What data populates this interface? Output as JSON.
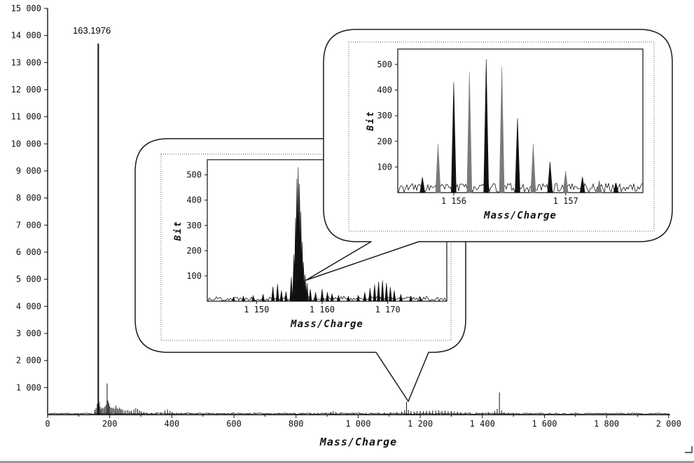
{
  "figure": {
    "background": "#ffffff",
    "trace_color": "#111111",
    "gray_peak_color": "#7a7a7a"
  },
  "chart_data": [
    {
      "id": "main-spectrum",
      "type": "line",
      "title": "",
      "xlabel": "Mass/Charge",
      "ylabel": "",
      "xlim": [
        0,
        2005
      ],
      "ylim": [
        0,
        15000
      ],
      "grid": false,
      "legend": "none",
      "xmajor": 200,
      "xminor": 100,
      "xticks": [
        {
          "v": 0,
          "label": "0"
        },
        {
          "v": 200,
          "label": "200"
        },
        {
          "v": 400,
          "label": "400"
        },
        {
          "v": 600,
          "label": "600"
        },
        {
          "v": 800,
          "label": "800"
        },
        {
          "v": 1000,
          "label": "1 000"
        },
        {
          "v": 1200,
          "label": "1 200"
        },
        {
          "v": 1400,
          "label": "1 400"
        },
        {
          "v": 1600,
          "label": "1 600"
        },
        {
          "v": 1800,
          "label": "1 800"
        },
        {
          "v": 2000,
          "label": "2 000"
        }
      ],
      "yticks": [
        {
          "v": 1000,
          "label": "1 000"
        },
        {
          "v": 2000,
          "label": "2 000"
        },
        {
          "v": 3000,
          "label": "3 000"
        },
        {
          "v": 4000,
          "label": "4 000"
        },
        {
          "v": 5000,
          "label": "5 000"
        },
        {
          "v": 6000,
          "label": "6 000"
        },
        {
          "v": 7000,
          "label": "7 000"
        },
        {
          "v": 8000,
          "label": "8 000"
        },
        {
          "v": 9000,
          "label": "9 000"
        },
        {
          "v": 10000,
          "label": "10 000"
        },
        {
          "v": 11000,
          "label": "11 000"
        },
        {
          "v": 12000,
          "label": "12 000"
        },
        {
          "v": 13000,
          "label": "13 000"
        },
        {
          "v": 14000,
          "label": "14 000"
        },
        {
          "v": 15000,
          "label": "15 000"
        }
      ],
      "annotation": {
        "text": "163.1976",
        "mz": 163.1976,
        "intensity": 13700
      },
      "noise": 50,
      "seed": 11,
      "peaks": [
        [
          152,
          180
        ],
        [
          156,
          240
        ],
        [
          160,
          400
        ],
        [
          163.2,
          13700
        ],
        [
          166,
          460
        ],
        [
          169,
          300
        ],
        [
          172,
          210
        ],
        [
          176,
          260
        ],
        [
          180,
          230
        ],
        [
          184,
          290
        ],
        [
          188,
          360
        ],
        [
          191.5,
          1150
        ],
        [
          194,
          520
        ],
        [
          197,
          430
        ],
        [
          200,
          310
        ],
        [
          204,
          260
        ],
        [
          208,
          230
        ],
        [
          212,
          260
        ],
        [
          216,
          210
        ],
        [
          220,
          330
        ],
        [
          224,
          240
        ],
        [
          228,
          210
        ],
        [
          232,
          260
        ],
        [
          236,
          190
        ],
        [
          240,
          200
        ],
        [
          246,
          160
        ],
        [
          252,
          150
        ],
        [
          258,
          170
        ],
        [
          264,
          140
        ],
        [
          270,
          150
        ],
        [
          278,
          190
        ],
        [
          284,
          240
        ],
        [
          290,
          210
        ],
        [
          296,
          150
        ],
        [
          302,
          120
        ],
        [
          310,
          95
        ],
        [
          320,
          75
        ],
        [
          335,
          65
        ],
        [
          350,
          85
        ],
        [
          365,
          95
        ],
        [
          378,
          155
        ],
        [
          386,
          195
        ],
        [
          394,
          135
        ],
        [
          402,
          95
        ],
        [
          415,
          75
        ],
        [
          430,
          65
        ],
        [
          445,
          70
        ],
        [
          460,
          60
        ],
        [
          480,
          55
        ],
        [
          500,
          50
        ],
        [
          520,
          55
        ],
        [
          545,
          50
        ],
        [
          570,
          55
        ],
        [
          595,
          50
        ],
        [
          620,
          55
        ],
        [
          645,
          50
        ],
        [
          670,
          55
        ],
        [
          695,
          60
        ],
        [
          720,
          55
        ],
        [
          745,
          62
        ],
        [
          770,
          58
        ],
        [
          795,
          62
        ],
        [
          820,
          58
        ],
        [
          845,
          62
        ],
        [
          870,
          68
        ],
        [
          895,
          72
        ],
        [
          912,
          105
        ],
        [
          920,
          135
        ],
        [
          928,
          95
        ],
        [
          945,
          75
        ],
        [
          965,
          65
        ],
        [
          985,
          68
        ],
        [
          1005,
          62
        ],
        [
          1025,
          68
        ],
        [
          1045,
          64
        ],
        [
          1065,
          72
        ],
        [
          1085,
          78
        ],
        [
          1105,
          88
        ],
        [
          1125,
          98
        ],
        [
          1140,
          115
        ],
        [
          1150,
          170
        ],
        [
          1156,
          480
        ],
        [
          1162,
          175
        ],
        [
          1170,
          125
        ],
        [
          1180,
          115
        ],
        [
          1190,
          125
        ],
        [
          1200,
          135
        ],
        [
          1210,
          125
        ],
        [
          1220,
          145
        ],
        [
          1230,
          135
        ],
        [
          1240,
          155
        ],
        [
          1250,
          145
        ],
        [
          1260,
          155
        ],
        [
          1270,
          135
        ],
        [
          1280,
          145
        ],
        [
          1290,
          125
        ],
        [
          1300,
          135
        ],
        [
          1310,
          115
        ],
        [
          1320,
          105
        ],
        [
          1330,
          95
        ],
        [
          1345,
          85
        ],
        [
          1360,
          75
        ],
        [
          1380,
          78
        ],
        [
          1400,
          82
        ],
        [
          1420,
          88
        ],
        [
          1440,
          125
        ],
        [
          1448,
          210
        ],
        [
          1455,
          820
        ],
        [
          1462,
          155
        ],
        [
          1470,
          95
        ],
        [
          1485,
          75
        ],
        [
          1500,
          65
        ],
        [
          1520,
          55
        ],
        [
          1540,
          48
        ],
        [
          1560,
          42
        ],
        [
          1585,
          42
        ],
        [
          1610,
          36
        ],
        [
          1640,
          32
        ],
        [
          1670,
          30
        ],
        [
          1700,
          28
        ],
        [
          1730,
          27
        ],
        [
          1760,
          26
        ],
        [
          1790,
          25
        ],
        [
          1820,
          23
        ],
        [
          1850,
          21
        ],
        [
          1880,
          20
        ],
        [
          1910,
          19
        ],
        [
          1940,
          18
        ],
        [
          1970,
          17
        ]
      ]
    },
    {
      "id": "inset-zoom-1150-1178",
      "type": "line",
      "title": "",
      "xlabel": "Mass/Charge",
      "ylabel": "Bit",
      "xlim": [
        1142.5,
        1179
      ],
      "ylim": [
        0,
        560
      ],
      "grid": false,
      "legend": "none",
      "xticks": [
        {
          "v": 1150,
          "label": "1 150"
        },
        {
          "v": 1160,
          "label": "1 160"
        },
        {
          "v": 1170,
          "label": "1 170"
        }
      ],
      "yticks": [
        {
          "v": 100,
          "label": "100"
        },
        {
          "v": 200,
          "label": "200"
        },
        {
          "v": 300,
          "label": "300"
        },
        {
          "v": 400,
          "label": "400"
        },
        {
          "v": 500,
          "label": "500"
        }
      ],
      "noise": 18,
      "seed": 22,
      "peak_halfwidth": 0.22,
      "peaks": [
        [
          1146.5,
          16
        ],
        [
          1148,
          20
        ],
        [
          1149.5,
          22
        ],
        [
          1151,
          28
        ],
        [
          1152.5,
          58
        ],
        [
          1153.2,
          68
        ],
        [
          1153.8,
          42
        ],
        [
          1154.5,
          38
        ],
        [
          1155.3,
          95
        ],
        [
          1155.7,
          185
        ],
        [
          1155.95,
          330
        ],
        [
          1156.15,
          485
        ],
        [
          1156.35,
          530
        ],
        [
          1156.55,
          465
        ],
        [
          1156.75,
          355
        ],
        [
          1156.95,
          235
        ],
        [
          1157.15,
          155
        ],
        [
          1157.4,
          105
        ],
        [
          1157.7,
          72
        ],
        [
          1158.2,
          48
        ],
        [
          1159,
          36
        ],
        [
          1160,
          48
        ],
        [
          1160.8,
          36
        ],
        [
          1161.5,
          30
        ],
        [
          1162.5,
          24
        ],
        [
          1164,
          20
        ],
        [
          1165.5,
          24
        ],
        [
          1166.5,
          36
        ],
        [
          1167.3,
          52
        ],
        [
          1168,
          66
        ],
        [
          1168.6,
          78
        ],
        [
          1169.2,
          82
        ],
        [
          1169.8,
          72
        ],
        [
          1170.4,
          56
        ],
        [
          1171,
          42
        ],
        [
          1172,
          28
        ],
        [
          1173.5,
          20
        ],
        [
          1175,
          16
        ]
      ]
    },
    {
      "id": "inset-zoom-1156-1157",
      "type": "line",
      "title": "",
      "xlabel": "Mass/Charge",
      "ylabel": "Bit",
      "xlim": [
        1155.5,
        1157.69
      ],
      "ylim": [
        0,
        560
      ],
      "grid": false,
      "legend": "none",
      "xticks": [
        {
          "v": 1156,
          "label": "1 156"
        },
        {
          "v": 1157,
          "label": "1 157"
        }
      ],
      "yticks": [
        {
          "v": 100,
          "label": "100"
        },
        {
          "v": 200,
          "label": "200"
        },
        {
          "v": 300,
          "label": "300"
        },
        {
          "v": 400,
          "label": "400"
        },
        {
          "v": 500,
          "label": "500"
        }
      ],
      "noise": 35,
      "seed": 33,
      "peak_halfwidth": 0.022,
      "peaks": [
        [
          1155.72,
          60,
          "black"
        ],
        [
          1155.86,
          190,
          "gray"
        ],
        [
          1156.0,
          430,
          "black"
        ],
        [
          1156.14,
          470,
          "gray"
        ],
        [
          1156.29,
          520,
          "black"
        ],
        [
          1156.43,
          490,
          "gray"
        ],
        [
          1156.57,
          290,
          "black"
        ],
        [
          1156.71,
          190,
          "gray"
        ],
        [
          1156.86,
          120,
          "black"
        ],
        [
          1157.0,
          85,
          "gray"
        ],
        [
          1157.15,
          62,
          "black"
        ],
        [
          1157.3,
          48,
          "gray"
        ],
        [
          1157.45,
          38,
          "black"
        ]
      ]
    }
  ]
}
